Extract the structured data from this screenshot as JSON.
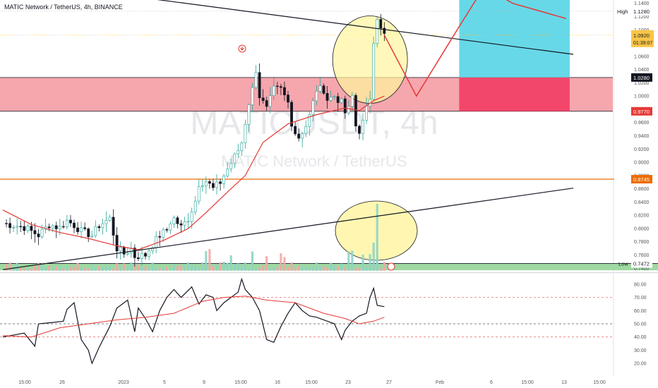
{
  "header": {
    "text": "MATIC Network / TetherUS, 4h, BINANCE"
  },
  "watermark": {
    "symbol": "MATICUSDT, 4h",
    "name": "MATIC Network / TetherUS"
  },
  "colors": {
    "up": "#26a69a",
    "down": "#131722",
    "ma": "#e53935",
    "zone": "#f6a1a9",
    "target": "#67d8e8",
    "stop": "#f2476a",
    "support": "#9fd9a2",
    "circle": "#fff59d",
    "orange": "#ef6c00",
    "price_tag": "#f9c547"
  },
  "chart_data": [
    {
      "type": "candlestick",
      "title": "MATIC Network / TetherUS, 4h, BINANCE",
      "ylim": [
        0.735,
        1.145
      ],
      "y_ticks": [
        "1.1400",
        "1.1200",
        "1.1000",
        "1.0800",
        "1.0600",
        "1.0400",
        "1.0200",
        "1.0000",
        "0.9800",
        "0.9600",
        "0.9400",
        "0.9200",
        "0.9000",
        "0.8800",
        "0.8600",
        "0.8400",
        "0.8200",
        "0.8000",
        "0.7800",
        "0.7600",
        "0.7400"
      ],
      "x_ticks": [
        "15:00",
        "26",
        "2023",
        "5",
        "9",
        "15:00",
        "16",
        "15:00",
        "23",
        "27",
        "Feb",
        "6",
        "15:00",
        "13",
        "15:00"
      ],
      "path": [
        [
          0,
          0.808
        ],
        [
          6,
          0.802
        ],
        [
          10,
          0.79
        ],
        [
          13,
          0.806
        ],
        [
          16,
          0.801
        ],
        [
          18,
          0.812
        ],
        [
          20,
          0.805
        ],
        [
          22,
          0.796
        ],
        [
          25,
          0.79
        ],
        [
          27,
          0.805
        ],
        [
          30,
          0.815
        ],
        [
          32,
          0.77
        ],
        [
          34,
          0.762
        ],
        [
          36,
          0.77
        ],
        [
          37,
          0.758
        ],
        [
          40,
          0.76
        ],
        [
          42,
          0.776
        ],
        [
          44,
          0.79
        ],
        [
          46,
          0.798
        ],
        [
          47,
          0.81
        ],
        [
          48,
          0.815
        ],
        [
          50,
          0.802
        ],
        [
          52,
          0.815
        ],
        [
          54,
          0.842
        ],
        [
          55,
          0.868
        ],
        [
          57,
          0.872
        ],
        [
          59,
          0.86
        ],
        [
          61,
          0.87
        ],
        [
          63,
          0.89
        ],
        [
          66,
          0.918
        ],
        [
          67,
          0.93
        ],
        [
          68,
          0.96
        ],
        [
          69,
          0.99
        ],
        [
          70,
          1.01
        ],
        [
          71,
          1.04
        ],
        [
          72,
          1.0
        ],
        [
          74,
          0.98
        ],
        [
          76,
          1.01
        ],
        [
          78,
          1.01
        ],
        [
          80,
          0.99
        ],
        [
          81,
          0.96
        ],
        [
          82,
          0.945
        ],
        [
          83,
          0.938
        ],
        [
          85,
          0.955
        ],
        [
          86,
          0.97
        ],
        [
          88,
          1.01
        ],
        [
          90,
          1.01
        ],
        [
          91,
          0.995
        ],
        [
          93,
          1.0
        ],
        [
          95,
          0.99
        ],
        [
          96,
          0.975
        ],
        [
          97,
          0.98
        ],
        [
          98,
          1.0
        ],
        [
          99,
          0.955
        ],
        [
          100,
          0.948
        ],
        [
          101,
          0.96
        ],
        [
          102,
          0.98
        ],
        [
          103,
          0.998
        ],
        [
          104,
          1.085
        ],
        [
          105,
          1.12
        ],
        [
          106,
          1.1
        ],
        [
          107,
          1.092
        ]
      ],
      "bars_total": 107,
      "series": [
        {
          "name": "",
          "type": "line",
          "values": [
            [
              0,
              0.828
            ],
            [
              8,
              0.806
            ],
            [
              16,
              0.794
            ],
            [
              24,
              0.785
            ],
            [
              32,
              0.774
            ],
            [
              38,
              0.768
            ],
            [
              45,
              0.782
            ],
            [
              52,
              0.8
            ],
            [
              57,
              0.824
            ],
            [
              63,
              0.855
            ],
            [
              68,
              0.88
            ],
            [
              73,
              0.93
            ],
            [
              80,
              0.958
            ],
            [
              88,
              0.972
            ],
            [
              96,
              0.982
            ],
            [
              100,
              0.978
            ],
            [
              104,
              0.993
            ],
            [
              107,
              1.0
            ]
          ]
        }
      ],
      "labels": {
        "high": "High",
        "high_value": "1.1280",
        "low": "Low",
        "low_value": "0.7472",
        "current_price": "1.0920",
        "countdown": "01:39:07",
        "zone_top": "1.0280",
        "zone_bottom": "0.9770",
        "orange_line": "0.8745"
      },
      "zones": {
        "resistance": [
          0.977,
          1.028
        ],
        "support": [
          0.737,
          0.7472
        ]
      },
      "lines": {
        "orange_level": 0.8745,
        "high_level": 1.128,
        "dashed_level": 1.092
      },
      "trendlines": [
        {
          "from": [
            23,
            1.16
          ],
          "to": [
            160,
            1.063
          ]
        },
        {
          "from": [
            0,
            0.738
          ],
          "to": [
            160,
            0.861
          ]
        }
      ],
      "projection": [
        [
          107,
          1.092
        ],
        [
          116,
          1.0
        ],
        [
          128,
          1.105
        ],
        [
          135,
          1.165
        ],
        [
          143,
          1.14
        ],
        [
          158,
          1.117
        ]
      ],
      "position": {
        "bar_start": 128,
        "bar_end": 159,
        "entry": 1.028,
        "target_top": 1.145,
        "stop": 0.977
      }
    },
    {
      "type": "line",
      "title": "",
      "ylim": [
        12,
        88
      ],
      "y_ticks": [
        "80.00",
        "70.00",
        "60.00",
        "50.00",
        "40.00",
        "30.00",
        "20.00"
      ],
      "levels": [
        70,
        50,
        40
      ],
      "series": [
        {
          "name": "",
          "values": [
            [
              0,
              40
            ],
            [
              6,
              43
            ],
            [
              9,
              33
            ],
            [
              10,
              50
            ],
            [
              14,
              51
            ],
            [
              17,
              52
            ],
            [
              18,
              61
            ],
            [
              20,
              66
            ],
            [
              22,
              38
            ],
            [
              24,
              30
            ],
            [
              25,
              20
            ],
            [
              27,
              32
            ],
            [
              30,
              48
            ],
            [
              32,
              62
            ],
            [
              35,
              68
            ],
            [
              37,
              44
            ],
            [
              38,
              62
            ],
            [
              40,
              54
            ],
            [
              42,
              44
            ],
            [
              44,
              60
            ],
            [
              46,
              70
            ],
            [
              48,
              76
            ],
            [
              50,
              70
            ],
            [
              53,
              78
            ],
            [
              55,
              65
            ],
            [
              57,
              72
            ],
            [
              59,
              70
            ],
            [
              60,
              60
            ],
            [
              62,
              66
            ],
            [
              64,
              70
            ],
            [
              66,
              74
            ],
            [
              67,
              84
            ],
            [
              68,
              76
            ],
            [
              70,
              70
            ],
            [
              72,
              60
            ],
            [
              74,
              38
            ],
            [
              76,
              36
            ],
            [
              78,
              48
            ],
            [
              80,
              58
            ],
            [
              82,
              66
            ],
            [
              84,
              60
            ],
            [
              86,
              56
            ],
            [
              88,
              55
            ],
            [
              91,
              52
            ],
            [
              93,
              50
            ],
            [
              95,
              38
            ],
            [
              96,
              45
            ],
            [
              98,
              52
            ],
            [
              100,
              56
            ],
            [
              102,
              58
            ],
            [
              103,
              70
            ],
            [
              104,
              77
            ],
            [
              105,
              64
            ],
            [
              107,
              63
            ]
          ]
        },
        {
          "name": "",
          "values": [
            [
              0,
              41
            ],
            [
              8,
              40
            ],
            [
              16,
              47
            ],
            [
              24,
              50
            ],
            [
              32,
              53
            ],
            [
              40,
              55
            ],
            [
              48,
              58
            ],
            [
              56,
              67
            ],
            [
              62,
              70
            ],
            [
              68,
              71
            ],
            [
              74,
              68
            ],
            [
              82,
              66
            ],
            [
              90,
              58
            ],
            [
              96,
              54
            ],
            [
              100,
              50
            ],
            [
              104,
              52
            ],
            [
              107,
              55
            ]
          ]
        }
      ]
    }
  ]
}
